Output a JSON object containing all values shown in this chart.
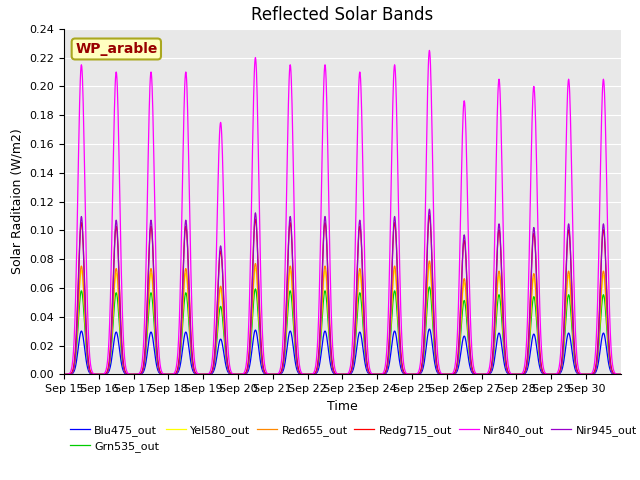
{
  "title": "Reflected Solar Bands",
  "xlabel": "Time",
  "ylabel": "Solar Raditaion (W/m2)",
  "annotation": "WP_arable",
  "ylim": [
    0,
    0.24
  ],
  "xtick_labels": [
    "Sep 15",
    "Sep 16",
    "Sep 17",
    "Sep 18",
    "Sep 19",
    "Sep 20",
    "Sep 21",
    "Sep 22",
    "Sep 23",
    "Sep 24",
    "Sep 25",
    "Sep 26",
    "Sep 27",
    "Sep 28",
    "Sep 29",
    "Sep 30"
  ],
  "series_order": [
    "Blu475_out",
    "Grn535_out",
    "Yel580_out",
    "Red655_out",
    "Redg715_out",
    "Nir945_out",
    "Nir840_out"
  ],
  "legend_order": [
    "Blu475_out",
    "Grn535_out",
    "Yel580_out",
    "Red655_out",
    "Redg715_out",
    "Nir840_out",
    "Nir945_out"
  ],
  "series": {
    "Blu475_out": {
      "color": "#0000FF",
      "rel_scale": 0.14,
      "sigma": 2.2
    },
    "Grn535_out": {
      "color": "#00CC00",
      "rel_scale": 0.27,
      "sigma": 2.2
    },
    "Yel580_out": {
      "color": "#FFFF00",
      "rel_scale": 0.335,
      "sigma": 2.2
    },
    "Red655_out": {
      "color": "#FF8800",
      "rel_scale": 0.35,
      "sigma": 2.2
    },
    "Redg715_out": {
      "color": "#FF0000",
      "rel_scale": 0.49,
      "sigma": 2.2
    },
    "Nir840_out": {
      "color": "#FF00FF",
      "rel_scale": 1.0,
      "sigma": 2.4
    },
    "Nir945_out": {
      "color": "#9900CC",
      "rel_scale": 0.51,
      "sigma": 2.0
    }
  },
  "daily_peaks_nir840": [
    0.215,
    0.21,
    0.21,
    0.21,
    0.175,
    0.22,
    0.215,
    0.215,
    0.21,
    0.215,
    0.225,
    0.19,
    0.205,
    0.2,
    0.205,
    0.205
  ],
  "background_color": "#e8e8e8",
  "plot_bg_color": "#e8e8e8",
  "title_fontsize": 12,
  "label_fontsize": 9,
  "tick_fontsize": 8,
  "annotation_fontcolor": "#990000",
  "annotation_bg": "#ffffc0",
  "annotation_border": "#aaa820"
}
